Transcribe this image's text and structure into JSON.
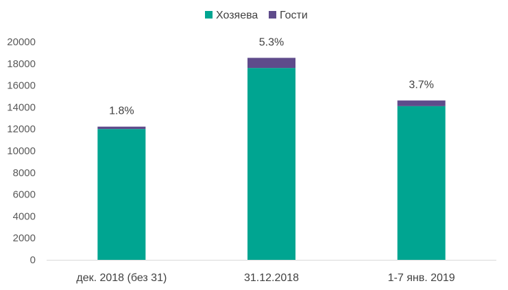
{
  "chart_data": {
    "type": "bar",
    "stacked": true,
    "categories": [
      "дек. 2018 (без 31)",
      "31.12.2018",
      "1-7 янв. 2019"
    ],
    "series": [
      {
        "name": "Хозяева",
        "values": [
          12000,
          17600,
          14100
        ],
        "color": "#00A591"
      },
      {
        "name": "Гости",
        "values": [
          220,
          930,
          520
        ],
        "color": "#5F4B8B"
      }
    ],
    "data_labels": [
      "1.8%",
      "5.3%",
      "3.7%"
    ],
    "ylim": [
      0,
      20000
    ],
    "yticks": [
      "0",
      "2000",
      "4000",
      "6000",
      "8000",
      "10000",
      "12000",
      "14000",
      "16000",
      "18000",
      "20000"
    ],
    "legend_position": "top",
    "grid": false,
    "xlabel": "",
    "ylabel": ""
  }
}
